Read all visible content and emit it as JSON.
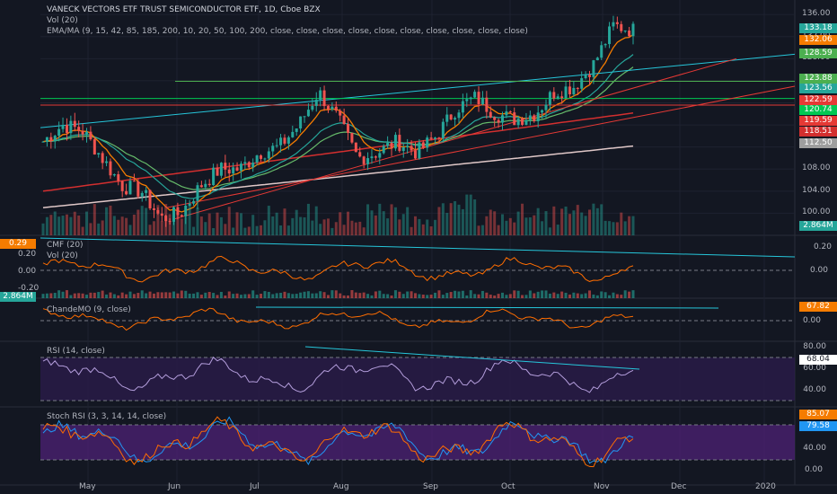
{
  "header": {
    "title": "VANECK VECTORS ETF TRUST SEMICONDUCTOR ETF, 1D, Cboe BZX",
    "vol_label": "Vol (20)",
    "ema_label": "EMA/MA (9, 15, 42, 85, 185, 200, 10, 20, 50, 100, 200, close, close, close, close, close, close, close, close, close, close)"
  },
  "colors": {
    "background": "#131722",
    "up": "#26a69a",
    "down": "#ef5350",
    "grid": "#1e2230",
    "trend_cyan": "#26c6da",
    "trend_green": "#4caf50",
    "trend_red": "#e53935",
    "ema_orange": "#f57c00",
    "ema_green": "#66bb6a",
    "ema_teal": "#26a69a",
    "ma_red": "#d32f2f",
    "ma_pink": "#e0c8c8",
    "cmf_orange": "#ff6d00",
    "rsi_band": "#2a1b4a",
    "stoch_band": "#4a2070",
    "stoch_k": "#2196f3",
    "stoch_d": "#ff6d00"
  },
  "x_axis": {
    "ticks": [
      "May",
      "Jun",
      "Jul",
      "Aug",
      "Sep",
      "Oct",
      "Nov",
      "Dec",
      "2020"
    ]
  },
  "price_axis": {
    "ticks": [
      "136.00",
      "132.00",
      "128.00",
      "124.00",
      "120.00",
      "116.00",
      "112.00",
      "108.00",
      "104.00",
      "100.00"
    ]
  },
  "price_tags": [
    {
      "value": "133.18",
      "color": "#26a69a"
    },
    {
      "value": "132.06",
      "color": "#f57c00"
    },
    {
      "value": "128.59",
      "color": "#4caf50"
    },
    {
      "value": "123.88",
      "color": "#4caf50"
    },
    {
      "value": "123.56",
      "color": "#26a69a"
    },
    {
      "value": "122.59",
      "color": "#e53935"
    },
    {
      "value": "120.74",
      "color": "#00c853"
    },
    {
      "value": "119.59",
      "color": "#e53935"
    },
    {
      "value": "118.51",
      "color": "#d32f2f"
    },
    {
      "value": "112.50",
      "color": "#9e9e9e"
    },
    {
      "value": "2.864M",
      "color": "#26a69a"
    }
  ],
  "panels": {
    "cmf": {
      "label": "CMF (20)",
      "vol_label": "Vol (20)",
      "ticks": [
        "0.20",
        "0.00",
        "-0.20"
      ],
      "tag_value": "0.29",
      "vol_tag": "2.864M"
    },
    "chande": {
      "label": "ChandeMO (9, close)",
      "ticks": [
        "0.00"
      ],
      "tag_value": "67.82"
    },
    "rsi": {
      "label": "RSI (14, close)",
      "ticks": [
        "80.00",
        "60.00",
        "40.00"
      ],
      "tag_value": "68.04"
    },
    "stoch": {
      "label": "Stoch RSI (3, 3, 14, 14, close)",
      "ticks": [
        "40.00",
        "0.00"
      ],
      "tag_k": "85.07",
      "tag_d": "79.58"
    }
  },
  "chart_data": {
    "type": "candlestick",
    "title": "VANECK VECTORS ETF TRUST SEMICONDUCTOR ETF, 1D, Cboe BZX",
    "ylim": [
      96,
      137
    ],
    "price_path": [
      {
        "x": "Apr 15",
        "y": 113
      },
      {
        "x": "Apr 22",
        "y": 116
      },
      {
        "x": "Apr 29",
        "y": 115
      },
      {
        "x": "May 6",
        "y": 110
      },
      {
        "x": "May 13",
        "y": 105
      },
      {
        "x": "May 20",
        "y": 104
      },
      {
        "x": "May 27",
        "y": 99
      },
      {
        "x": "Jun 3",
        "y": 100
      },
      {
        "x": "Jun 10",
        "y": 105
      },
      {
        "x": "Jun 17",
        "y": 108
      },
      {
        "x": "Jun 24",
        "y": 108
      },
      {
        "x": "Jul 1",
        "y": 111
      },
      {
        "x": "Jul 8",
        "y": 112
      },
      {
        "x": "Jul 15",
        "y": 116
      },
      {
        "x": "Jul 22",
        "y": 122
      },
      {
        "x": "Jul 29",
        "y": 117
      },
      {
        "x": "Aug 5",
        "y": 110
      },
      {
        "x": "Aug 12",
        "y": 111
      },
      {
        "x": "Aug 19",
        "y": 113
      },
      {
        "x": "Aug 26",
        "y": 111
      },
      {
        "x": "Sep 2",
        "y": 114
      },
      {
        "x": "Sep 9",
        "y": 119
      },
      {
        "x": "Sep 16",
        "y": 121
      },
      {
        "x": "Sep 23",
        "y": 118
      },
      {
        "x": "Sep 30",
        "y": 117
      },
      {
        "x": "Oct 7",
        "y": 118
      },
      {
        "x": "Oct 14",
        "y": 122
      },
      {
        "x": "Oct 21",
        "y": 123
      },
      {
        "x": "Oct 28",
        "y": 127
      },
      {
        "x": "Nov 4",
        "y": 134
      },
      {
        "x": "Nov 11",
        "y": 133.18
      }
    ]
  }
}
